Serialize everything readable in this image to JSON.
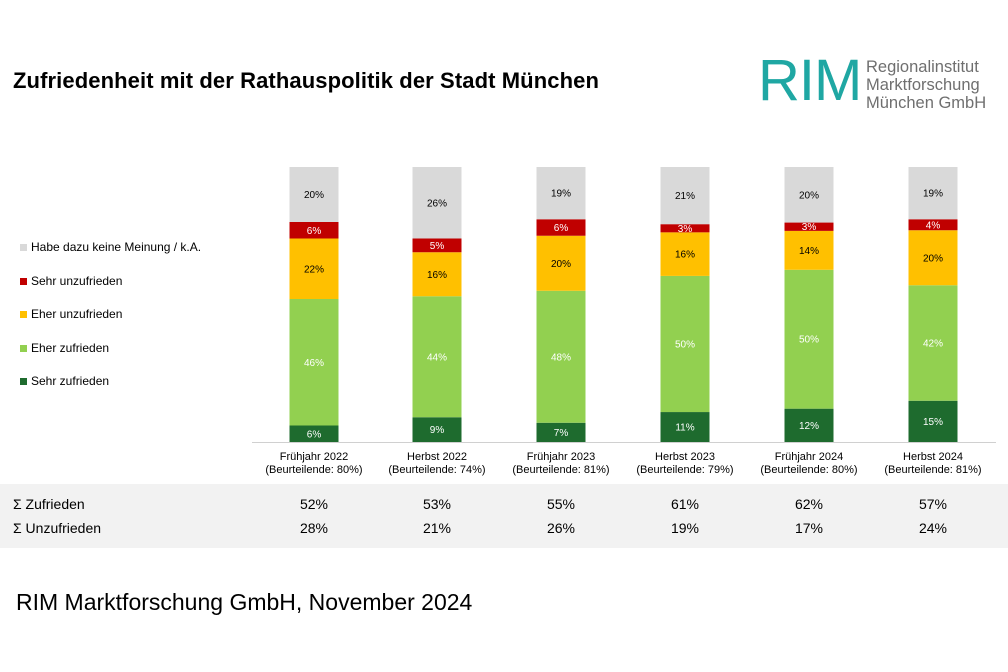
{
  "title": "Zufriedenheit mit der Rathauspolitik der Stadt München",
  "logo": {
    "mark": "RIM",
    "lines": [
      "Regionalinstitut",
      "Marktforschung",
      "München GmbH"
    ]
  },
  "legend": [
    {
      "label": "Habe dazu keine Meinung / k.A.",
      "color": "#d9d9d9"
    },
    {
      "label": "Sehr unzufrieden",
      "color": "#c00000"
    },
    {
      "label": "Eher unzufrieden",
      "color": "#ffc000"
    },
    {
      "label": "Eher zufrieden",
      "color": "#92d050"
    },
    {
      "label": "Sehr zufrieden",
      "color": "#1e6b2e"
    }
  ],
  "chart_data": {
    "type": "bar",
    "stacked": true,
    "categories": [
      {
        "name": "Frühjahr 2022",
        "sub": "(Beurteilende: 80%)"
      },
      {
        "name": "Herbst 2022",
        "sub": "(Beurteilende: 74%)"
      },
      {
        "name": "Frühjahr 2023",
        "sub": "(Beurteilende: 81%)"
      },
      {
        "name": "Herbst 2023",
        "sub": "(Beurteilende: 79%)"
      },
      {
        "name": "Frühjahr 2024",
        "sub": "(Beurteilende: 80%)"
      },
      {
        "name": "Herbst 2024",
        "sub": "(Beurteilende: 81%)"
      }
    ],
    "series": [
      {
        "name": "Sehr zufrieden",
        "color": "#1e6b2e",
        "label_color": "#ffffff",
        "values": [
          6,
          9,
          7,
          11,
          12,
          15
        ]
      },
      {
        "name": "Eher zufrieden",
        "color": "#92d050",
        "label_color": "#ffffff",
        "values": [
          46,
          44,
          48,
          50,
          50,
          42
        ]
      },
      {
        "name": "Eher unzufrieden",
        "color": "#ffc000",
        "label_color": "#000000",
        "values": [
          22,
          16,
          20,
          16,
          14,
          20
        ]
      },
      {
        "name": "Sehr unzufrieden",
        "color": "#c00000",
        "label_color": "#ffffff",
        "values": [
          6,
          5,
          6,
          3,
          3,
          4
        ]
      },
      {
        "name": "Habe dazu keine Meinung / k.A.",
        "color": "#d9d9d9",
        "label_color": "#000000",
        "values": [
          20,
          26,
          19,
          21,
          20,
          19
        ]
      }
    ]
  },
  "summary": {
    "rows": [
      {
        "label": "Σ Zufrieden",
        "values": [
          "52%",
          "53%",
          "55%",
          "61%",
          "62%",
          "57%"
        ]
      },
      {
        "label": "Σ Unzufrieden",
        "values": [
          "28%",
          "21%",
          "26%",
          "19%",
          "17%",
          "24%"
        ]
      }
    ]
  },
  "footer": "RIM Marktforschung GmbH, November 2024"
}
